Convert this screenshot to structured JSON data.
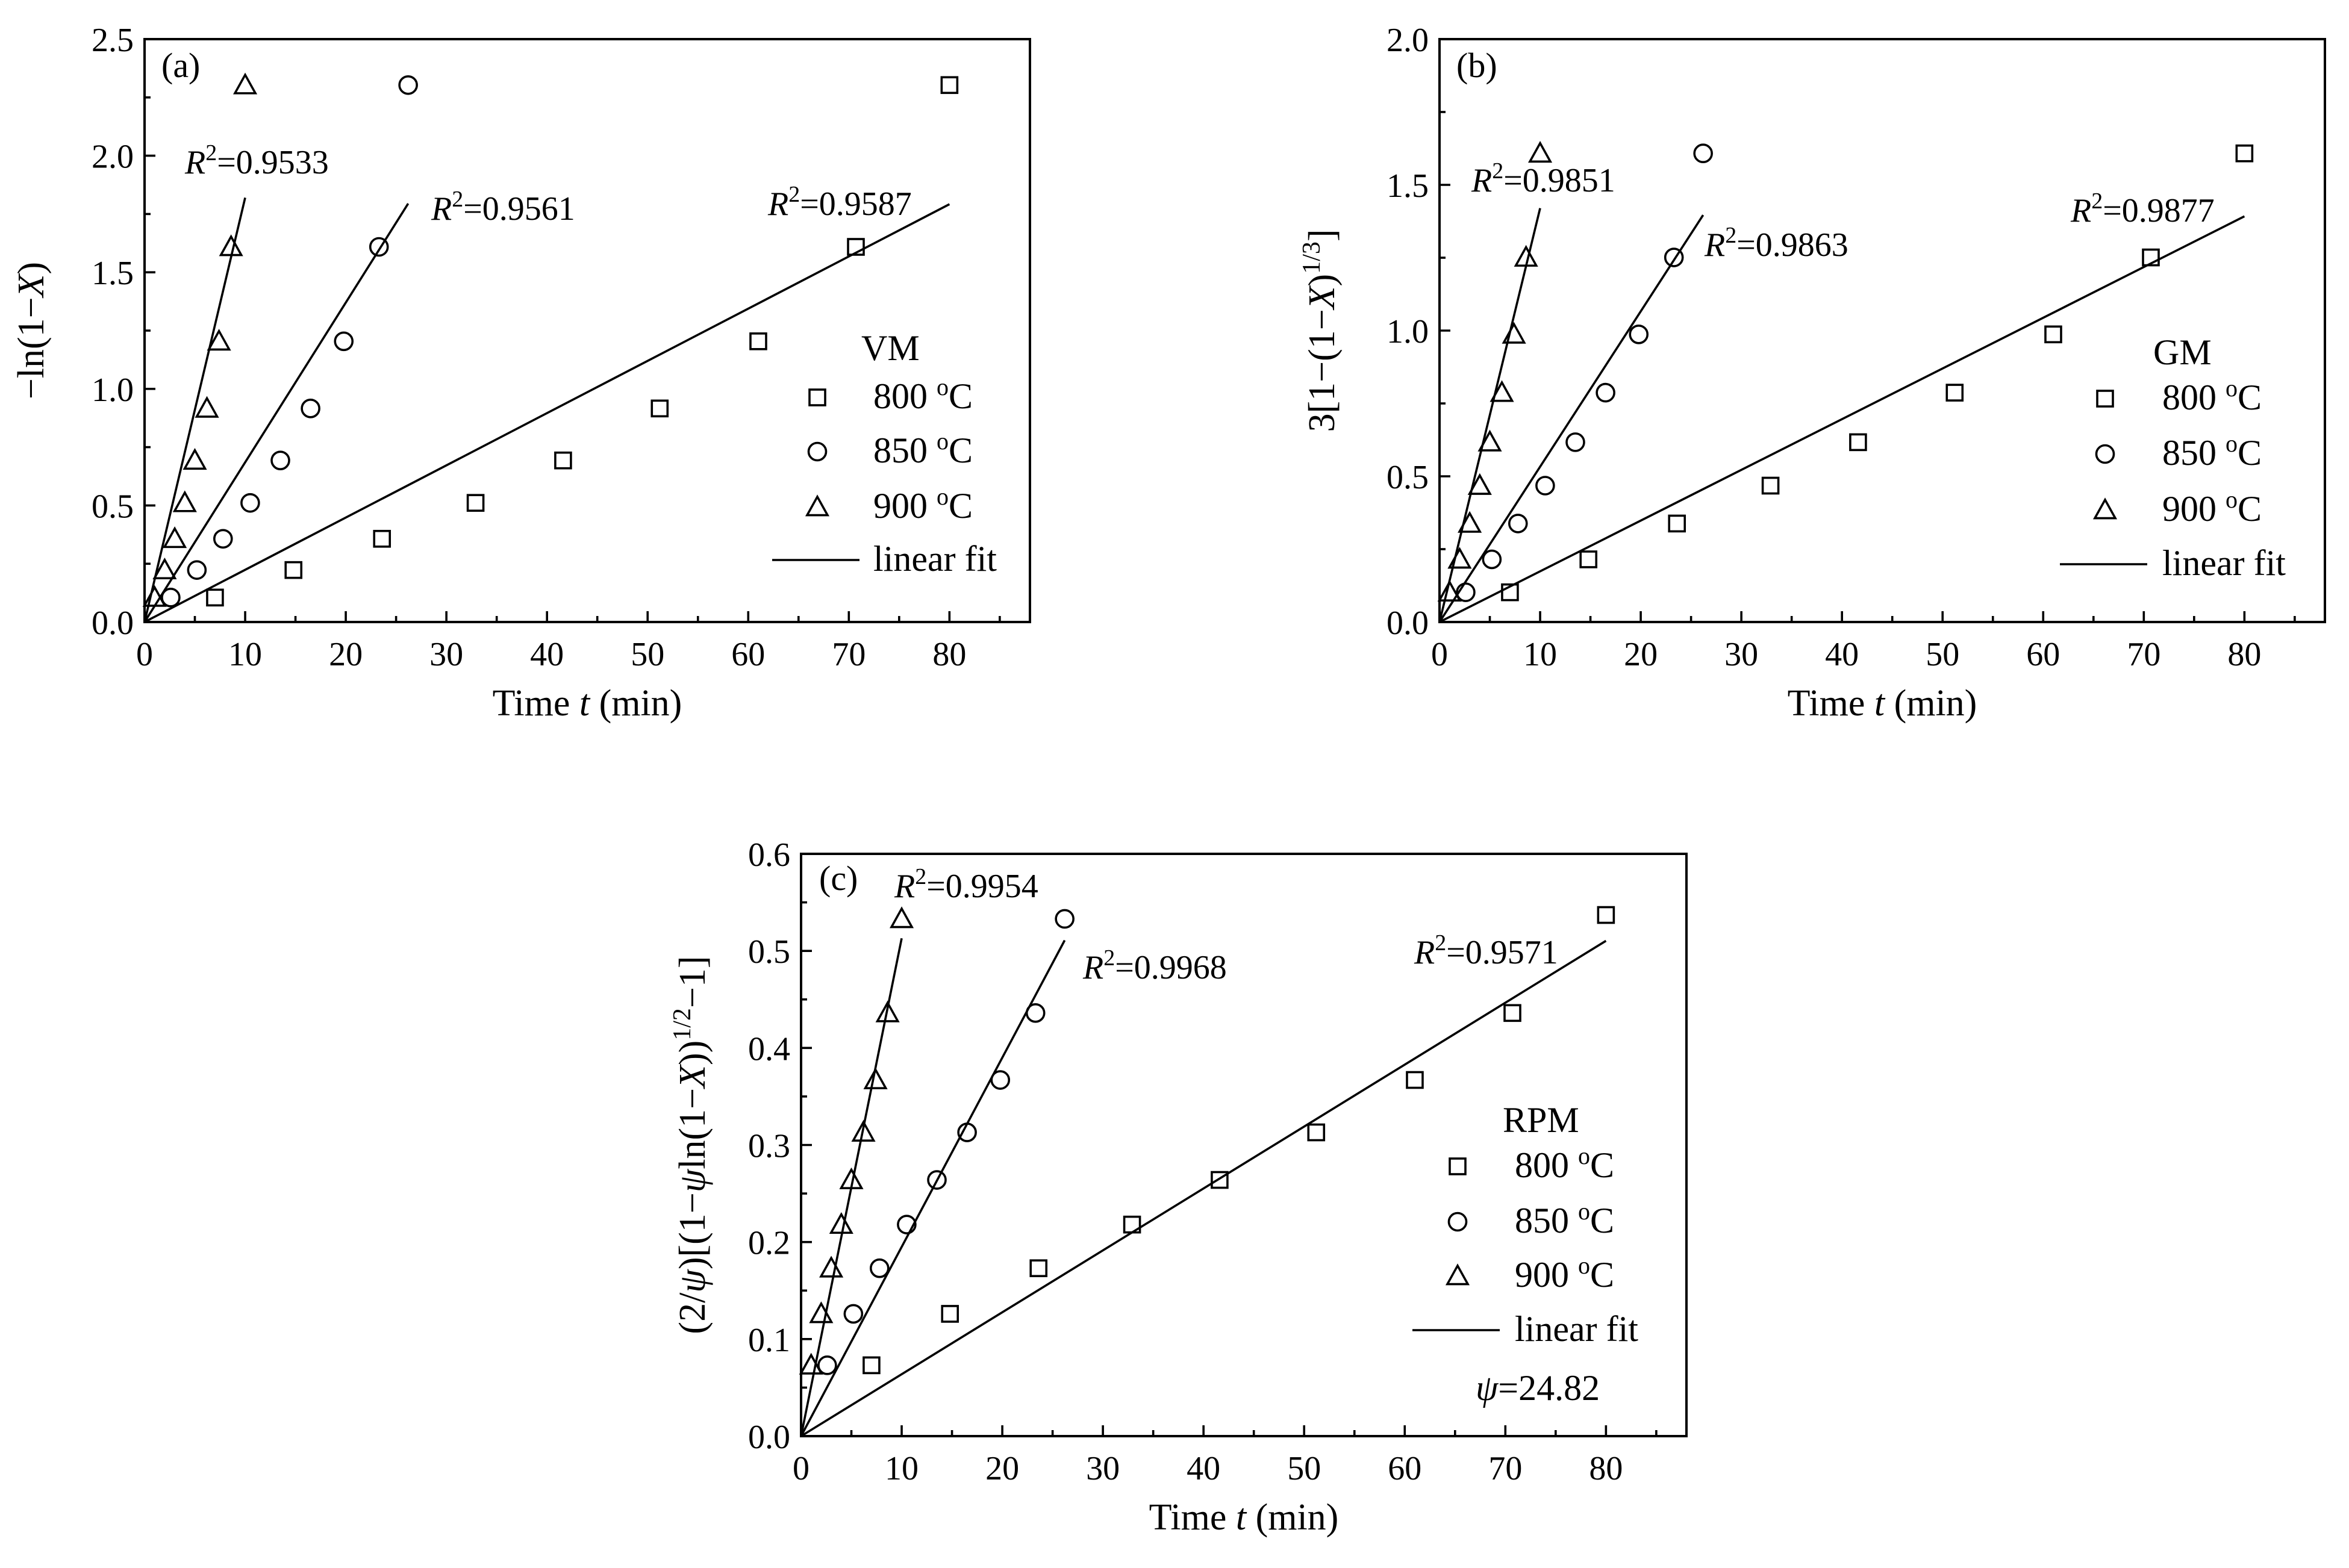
{
  "chart_data": [
    {
      "type": "scatter",
      "panel_label": "(a)",
      "model": "VM",
      "xlabel_parts": [
        "Time ",
        "t",
        " (min)"
      ],
      "ylabel": "−ln(1−X)",
      "xlim": [
        0,
        88
      ],
      "ylim": [
        0,
        2.5
      ],
      "xticks": [
        0,
        10,
        20,
        30,
        40,
        50,
        60,
        70,
        80
      ],
      "yticks": [
        0.0,
        0.5,
        1.0,
        1.5,
        2.0,
        2.5
      ],
      "ytick_labels": [
        "0.0",
        "0.5",
        "1.0",
        "1.5",
        "2.0",
        "2.5"
      ],
      "series": [
        {
          "name": "800 °C",
          "legend_label": "800 oC",
          "marker": "square",
          "x": [
            7,
            14.8,
            23.6,
            32.9,
            41.6,
            51.2,
            61.0,
            70.7,
            80.0
          ],
          "y": [
            0.105,
            0.223,
            0.357,
            0.511,
            0.693,
            0.916,
            1.204,
            1.609,
            2.303
          ],
          "fit": {
            "slope": 0.0224,
            "r2_label": "R2=0.9587",
            "x_end": 80
          }
        },
        {
          "name": "850 °C",
          "legend_label": "850 oC",
          "marker": "circle",
          "x": [
            2.6,
            5.2,
            7.8,
            10.5,
            13.5,
            16.5,
            19.8,
            23.3,
            26.2
          ],
          "y": [
            0.105,
            0.223,
            0.357,
            0.511,
            0.693,
            0.916,
            1.204,
            1.609,
            2.303
          ],
          "fit": {
            "slope": 0.0685,
            "r2_label": "R2=0.9561",
            "x_end": 26.2
          }
        },
        {
          "name": "900 °C",
          "legend_label": "900 oC",
          "marker": "triangle",
          "x": [
            1.0,
            2.0,
            3.0,
            4.0,
            5.0,
            6.2,
            7.4,
            8.6,
            10.0
          ],
          "y": [
            0.105,
            0.223,
            0.357,
            0.511,
            0.693,
            0.916,
            1.204,
            1.609,
            2.303
          ],
          "fit": {
            "slope": 0.182,
            "r2_label": "R2=0.9533",
            "x_end": 10.0
          }
        }
      ],
      "legend_title": "VM",
      "legend_fit_label": "linear fit"
    },
    {
      "type": "scatter",
      "panel_label": "(b)",
      "model": "GM",
      "xlabel_parts": [
        "Time ",
        "t",
        " (min)"
      ],
      "ylabel": "3[1−(1−X)1/3]",
      "xlim": [
        0,
        88
      ],
      "ylim": [
        0,
        2.0
      ],
      "xticks": [
        0,
        10,
        20,
        30,
        40,
        50,
        60,
        70,
        80
      ],
      "yticks": [
        0.0,
        0.5,
        1.0,
        1.5,
        2.0
      ],
      "ytick_labels": [
        "0.0",
        "0.5",
        "1.0",
        "1.5",
        "2.0"
      ],
      "series": [
        {
          "name": "800 °C",
          "legend_label": "800 oC",
          "marker": "square",
          "x": [
            7,
            14.8,
            23.6,
            32.9,
            41.6,
            51.2,
            61.0,
            70.7,
            80.0
          ],
          "y": [
            0.102,
            0.215,
            0.338,
            0.468,
            0.617,
            0.787,
            0.987,
            1.251,
            1.608
          ],
          "fit": {
            "slope": 0.0174,
            "r2_label": "R2=0.9877",
            "x_end": 80
          }
        },
        {
          "name": "850 °C",
          "legend_label": "850 oC",
          "marker": "circle",
          "x": [
            2.6,
            5.2,
            7.8,
            10.5,
            13.5,
            16.5,
            19.8,
            23.3,
            26.2
          ],
          "y": [
            0.102,
            0.215,
            0.338,
            0.468,
            0.617,
            0.787,
            0.987,
            1.251,
            1.608
          ],
          "fit": {
            "slope": 0.0533,
            "r2_label": "R2=0.9863",
            "x_end": 26.2
          }
        },
        {
          "name": "900 °C",
          "legend_label": "900 oC",
          "marker": "triangle",
          "x": [
            1.0,
            2.0,
            3.0,
            4.0,
            5.0,
            6.2,
            7.4,
            8.6,
            10.0
          ],
          "y": [
            0.102,
            0.215,
            0.338,
            0.468,
            0.617,
            0.787,
            0.987,
            1.251,
            1.608
          ],
          "fit": {
            "slope": 0.142,
            "r2_label": "R2=0.9851",
            "x_end": 10.0
          }
        }
      ],
      "legend_title": "GM",
      "legend_fit_label": "linear fit"
    },
    {
      "type": "scatter",
      "panel_label": "(c)",
      "model": "RPM",
      "xlabel_parts": [
        "Time ",
        "t",
        " (min)"
      ],
      "ylabel": "(2/ψ)[(1−ψln(1−X))1/2−1]",
      "xlim": [
        0,
        88
      ],
      "ylim": [
        0,
        0.6
      ],
      "xticks": [
        0,
        10,
        20,
        30,
        40,
        50,
        60,
        70,
        80
      ],
      "yticks": [
        0.0,
        0.1,
        0.2,
        0.3,
        0.4,
        0.5,
        0.6
      ],
      "ytick_labels": [
        "0.0",
        "0.1",
        "0.2",
        "0.3",
        "0.4",
        "0.5",
        "0.6"
      ],
      "series": [
        {
          "name": "800 °C",
          "legend_label": "800 oC",
          "marker": "square",
          "x": [
            7,
            14.8,
            23.6,
            32.9,
            41.6,
            51.2,
            61.0,
            70.7,
            80.0
          ],
          "y": [
            0.073,
            0.126,
            0.173,
            0.218,
            0.264,
            0.313,
            0.367,
            0.436,
            0.537
          ],
          "fit": {
            "slope": 0.00638,
            "r2_label": "R2=0.9571",
            "x_end": 80
          }
        },
        {
          "name": "850 °C",
          "legend_label": "850 oC",
          "marker": "circle",
          "x": [
            2.6,
            5.2,
            7.8,
            10.5,
            13.5,
            16.5,
            19.8,
            23.3,
            26.2
          ],
          "y": [
            0.073,
            0.126,
            0.173,
            0.218,
            0.264,
            0.313,
            0.367,
            0.436,
            0.533
          ],
          "fit": {
            "slope": 0.0195,
            "r2_label": "R2=0.9968",
            "x_end": 26.2
          }
        },
        {
          "name": "900 °C",
          "legend_label": "900 oC",
          "marker": "triangle",
          "x": [
            1.0,
            2.0,
            3.0,
            4.0,
            5.0,
            6.2,
            7.4,
            8.6,
            10.0
          ],
          "y": [
            0.073,
            0.126,
            0.173,
            0.218,
            0.264,
            0.313,
            0.367,
            0.436,
            0.533
          ],
          "fit": {
            "slope": 0.0513,
            "r2_label": "R2=0.9954",
            "x_end": 10.0
          }
        }
      ],
      "legend_title": "RPM",
      "legend_fit_label": "linear fit",
      "extra_annotation": "ψ=24.82"
    }
  ]
}
